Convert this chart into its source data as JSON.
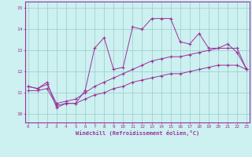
{
  "xlabel": "Windchill (Refroidissement éolien,°C)",
  "background_color": "#cdf0f0",
  "grid_color": "#99cccc",
  "line_color": "#993399",
  "x_ticks": [
    0,
    1,
    2,
    3,
    4,
    5,
    6,
    7,
    8,
    9,
    10,
    11,
    12,
    13,
    14,
    15,
    16,
    17,
    18,
    19,
    20,
    21,
    22,
    23
  ],
  "y_ticks": [
    10,
    11,
    12,
    13,
    14,
    15
  ],
  "ylim": [
    9.6,
    15.3
  ],
  "xlim": [
    -0.3,
    23.3
  ],
  "series1_x": [
    0,
    1,
    2,
    3,
    4,
    5,
    6,
    7,
    8,
    9,
    10,
    11,
    12,
    13,
    14,
    15,
    16,
    17,
    18,
    19,
    20,
    21,
    22,
    23
  ],
  "series1_y": [
    11.3,
    11.2,
    11.5,
    10.3,
    10.5,
    10.5,
    11.1,
    13.1,
    13.6,
    12.1,
    12.2,
    14.1,
    14.0,
    14.5,
    14.5,
    14.5,
    13.4,
    13.3,
    13.8,
    13.1,
    13.1,
    13.3,
    12.9,
    12.1
  ],
  "series2_x": [
    0,
    1,
    2,
    3,
    4,
    5,
    6,
    7,
    8,
    9,
    10,
    11,
    12,
    13,
    14,
    15,
    16,
    17,
    18,
    19,
    20,
    21,
    22,
    23
  ],
  "series2_y": [
    11.3,
    11.2,
    11.4,
    10.5,
    10.6,
    10.7,
    11.0,
    11.3,
    11.5,
    11.7,
    11.9,
    12.1,
    12.3,
    12.5,
    12.6,
    12.7,
    12.7,
    12.8,
    12.9,
    13.0,
    13.1,
    13.1,
    13.1,
    12.1
  ],
  "series3_x": [
    0,
    1,
    2,
    3,
    4,
    5,
    6,
    7,
    8,
    9,
    10,
    11,
    12,
    13,
    14,
    15,
    16,
    17,
    18,
    19,
    20,
    21,
    22,
    23
  ],
  "series3_y": [
    11.1,
    11.1,
    11.2,
    10.4,
    10.5,
    10.5,
    10.7,
    10.9,
    11.0,
    11.2,
    11.3,
    11.5,
    11.6,
    11.7,
    11.8,
    11.9,
    11.9,
    12.0,
    12.1,
    12.2,
    12.3,
    12.3,
    12.3,
    12.1
  ]
}
